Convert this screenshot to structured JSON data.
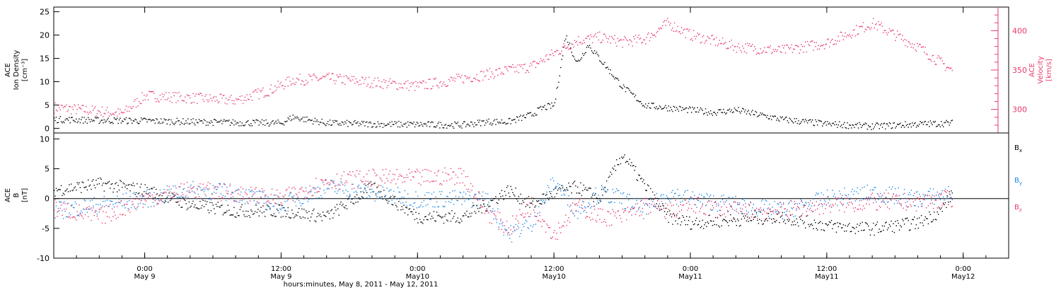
{
  "xaxis": {
    "start": "2011-05-08 16:00",
    "end": "2011-05-12 04:00",
    "ticks": [
      {
        "t": "2011-05-09 00:00",
        "label1": "0:00",
        "label2": "May 9"
      },
      {
        "t": "2011-05-09 12:00",
        "label1": "12:00",
        "label2": "May 9"
      },
      {
        "t": "2011-05-10 00:00",
        "label1": "0:00",
        "label2": "May10"
      },
      {
        "t": "2011-05-10 12:00",
        "label1": "12:00",
        "label2": "May10"
      },
      {
        "t": "2011-05-11 00:00",
        "label1": "0:00",
        "label2": "May11"
      },
      {
        "t": "2011-05-11 12:00",
        "label1": "12:00",
        "label2": "May11"
      },
      {
        "t": "2011-05-12 00:00",
        "label1": "0:00",
        "label2": "May12"
      }
    ],
    "label": "hours:minutes, May  8, 2011 - May 12, 2011"
  },
  "colors": {
    "black": "#000000",
    "pink": "#e83a6b",
    "blue": "#1e88e5"
  },
  "chart_data": [
    {
      "type": "scatter",
      "panel": "plasma",
      "ylabel_left": [
        "ACE",
        "Ion Density",
        "[cm⁻³]"
      ],
      "ylabel_right": [
        "ACE",
        "Velocity",
        "[km/s]"
      ],
      "left_axis": {
        "ylim": [
          -1,
          26
        ],
        "ticks": [
          0,
          5,
          10,
          15,
          20,
          25
        ]
      },
      "right_axis": {
        "ylim": [
          270,
          430
        ],
        "ticks": [
          300,
          350,
          400
        ]
      },
      "series": [
        {
          "name": "Ion Density",
          "axis": "left",
          "color": "#000000",
          "x": [
            "2011-05-08 16:00",
            "2011-05-08 20:00",
            "2011-05-09 00:00",
            "2011-05-09 04:00",
            "2011-05-09 08:00",
            "2011-05-09 12:00",
            "2011-05-09 13:00",
            "2011-05-09 16:00",
            "2011-05-09 20:00",
            "2011-05-10 00:00",
            "2011-05-10 04:00",
            "2011-05-10 06:00",
            "2011-05-10 08:00",
            "2011-05-10 10:00",
            "2011-05-10 11:00",
            "2011-05-10 12:00",
            "2011-05-10 13:00",
            "2011-05-10 14:00",
            "2011-05-10 15:00",
            "2011-05-10 16:00",
            "2011-05-10 17:00",
            "2011-05-10 18:00",
            "2011-05-10 20:00",
            "2011-05-10 22:00",
            "2011-05-11 00:00",
            "2011-05-11 02:00",
            "2011-05-11 04:00",
            "2011-05-11 06:00",
            "2011-05-11 08:00",
            "2011-05-11 12:00",
            "2011-05-11 16:00",
            "2011-05-11 20:00",
            "2011-05-11 23:00"
          ],
          "y": [
            2,
            1.8,
            1.7,
            1.5,
            1.3,
            1.2,
            2.5,
            1.2,
            1,
            0.9,
            0.8,
            1.5,
            1.5,
            3,
            4.5,
            5,
            20,
            14,
            18,
            15,
            12,
            9,
            5,
            4.5,
            4,
            3.5,
            4,
            3,
            2,
            1,
            0.5,
            1,
            1.2
          ]
        },
        {
          "name": "Velocity",
          "axis": "right",
          "color": "#e83a6b",
          "x": [
            "2011-05-08 16:00",
            "2011-05-08 20:00",
            "2011-05-08 22:00",
            "2011-05-09 00:00",
            "2011-05-09 04:00",
            "2011-05-09 08:00",
            "2011-05-09 11:00",
            "2011-05-09 13:00",
            "2011-05-09 16:00",
            "2011-05-09 20:00",
            "2011-05-10 00:00",
            "2011-05-10 04:00",
            "2011-05-10 08:00",
            "2011-05-10 10:00",
            "2011-05-10 12:00",
            "2011-05-10 14:00",
            "2011-05-10 16:00",
            "2011-05-10 18:00",
            "2011-05-10 20:00",
            "2011-05-10 22:00",
            "2011-05-11 00:00",
            "2011-05-11 04:00",
            "2011-05-11 08:00",
            "2011-05-11 12:00",
            "2011-05-11 16:00",
            "2011-05-11 20:00",
            "2011-05-11 23:00"
          ],
          "y": [
            303,
            298,
            295,
            318,
            315,
            312,
            325,
            338,
            340,
            335,
            330,
            340,
            350,
            355,
            372,
            388,
            392,
            386,
            390,
            410,
            395,
            380,
            375,
            385,
            410,
            380,
            350
          ]
        }
      ]
    },
    {
      "type": "scatter",
      "panel": "magnetic field",
      "ylabel_left": [
        "ACE",
        "B",
        "[nT]"
      ],
      "ylim": [
        -10,
        11
      ],
      "yticks": [
        -10,
        -5,
        0,
        5,
        10
      ],
      "zero_line": true,
      "legend": [
        "Bx",
        "By",
        "Bz"
      ],
      "series": [
        {
          "name": "Bx",
          "color": "#000000",
          "x": [
            "2011-05-08 16:00",
            "2011-05-08 20:00",
            "2011-05-09 00:00",
            "2011-05-09 04:00",
            "2011-05-09 08:00",
            "2011-05-09 12:00",
            "2011-05-09 16:00",
            "2011-05-09 20:00",
            "2011-05-10 00:00",
            "2011-05-10 04:00",
            "2011-05-10 06:00",
            "2011-05-10 08:00",
            "2011-05-10 10:00",
            "2011-05-10 12:00",
            "2011-05-10 14:00",
            "2011-05-10 16:00",
            "2011-05-10 18:00",
            "2011-05-10 20:00",
            "2011-05-10 22:00",
            "2011-05-11 00:00",
            "2011-05-11 04:00",
            "2011-05-11 08:00",
            "2011-05-11 12:00",
            "2011-05-11 16:00",
            "2011-05-11 20:00",
            "2011-05-11 22:00",
            "2011-05-11 23:00"
          ],
          "y": [
            1.5,
            2.5,
            1.5,
            -1,
            -2,
            -2,
            -3,
            2,
            -3,
            -3,
            -1,
            1.5,
            -1,
            1,
            2,
            0,
            7.5,
            2,
            -3,
            -4,
            -3.5,
            -3,
            -4.5,
            -5,
            -4,
            -2,
            1
          ]
        },
        {
          "name": "By",
          "color": "#1e88e5",
          "x": [
            "2011-05-08 16:00",
            "2011-05-08 20:00",
            "2011-05-09 00:00",
            "2011-05-09 04:00",
            "2011-05-09 08:00",
            "2011-05-09 12:00",
            "2011-05-09 16:00",
            "2011-05-09 20:00",
            "2011-05-10 00:00",
            "2011-05-10 04:00",
            "2011-05-10 06:00",
            "2011-05-10 08:00",
            "2011-05-10 10:00",
            "2011-05-10 12:00",
            "2011-05-10 14:00",
            "2011-05-10 16:00",
            "2011-05-10 18:00",
            "2011-05-10 20:00",
            "2011-05-10 22:00",
            "2011-05-11 00:00",
            "2011-05-11 04:00",
            "2011-05-11 08:00",
            "2011-05-11 12:00",
            "2011-05-11 16:00",
            "2011-05-11 20:00",
            "2011-05-11 23:00"
          ],
          "y": [
            -2,
            -1,
            0,
            1.5,
            1,
            -1,
            2,
            1,
            0,
            0,
            0,
            -6,
            -4,
            3,
            -2,
            1,
            0,
            -2,
            1,
            0,
            -1,
            -2,
            0,
            1,
            0,
            1
          ]
        },
        {
          "name": "Bz",
          "color": "#e83a6b",
          "x": [
            "2011-05-08 16:00",
            "2011-05-08 20:00",
            "2011-05-09 00:00",
            "2011-05-09 04:00",
            "2011-05-09 08:00",
            "2011-05-09 12:00",
            "2011-05-09 16:00",
            "2011-05-09 20:00",
            "2011-05-10 00:00",
            "2011-05-10 04:00",
            "2011-05-10 06:00",
            "2011-05-10 08:00",
            "2011-05-10 10:00",
            "2011-05-10 12:00",
            "2011-05-10 14:00",
            "2011-05-10 16:00",
            "2011-05-10 18:00",
            "2011-05-10 20:00",
            "2011-05-10 22:00",
            "2011-05-11 00:00",
            "2011-05-11 04:00",
            "2011-05-11 08:00",
            "2011-05-11 12:00",
            "2011-05-11 16:00",
            "2011-05-11 20:00",
            "2011-05-11 23:00"
          ],
          "y": [
            -1.5,
            -3,
            0,
            1.5,
            1,
            0,
            3,
            3.5,
            3.5,
            4,
            -2,
            -5,
            -1,
            -6,
            -1,
            -3,
            -3,
            -1,
            -2,
            -1,
            -2,
            -2,
            -1,
            -0.5,
            -0.5,
            0
          ]
        }
      ]
    }
  ]
}
